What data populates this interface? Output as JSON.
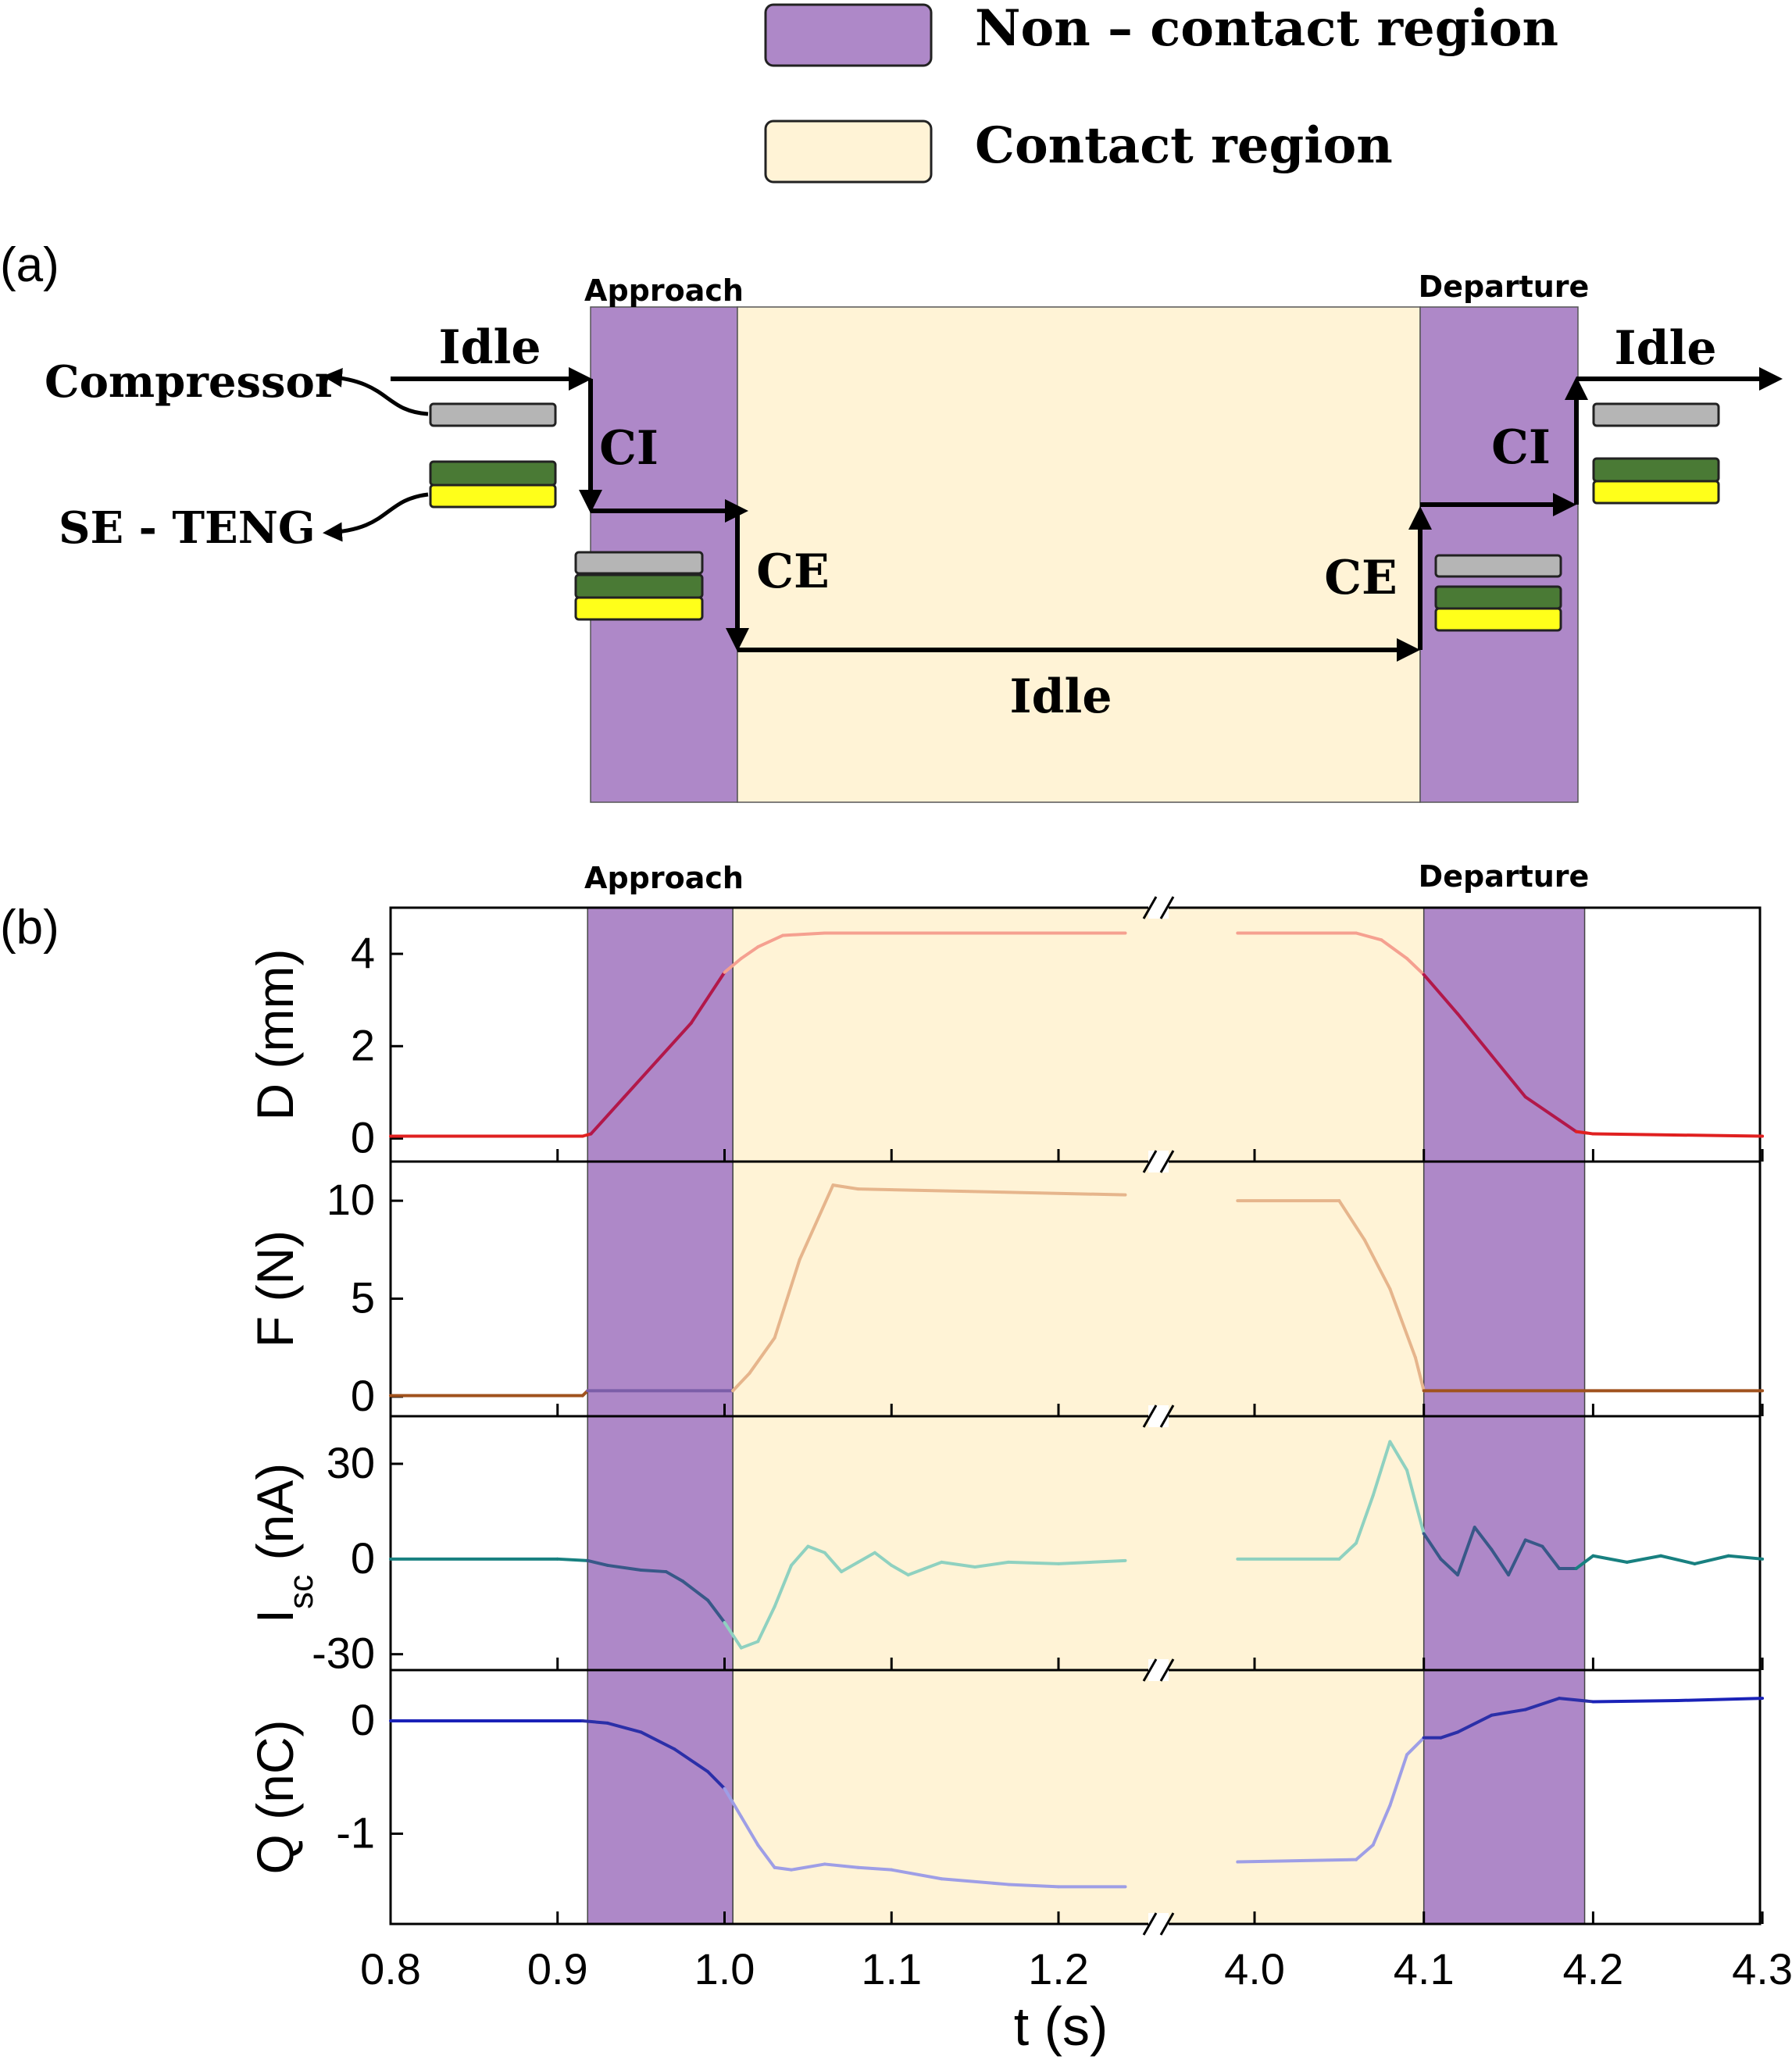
{
  "legend": [
    {
      "label": "Non – contact region",
      "color": "#ae88c8"
    },
    {
      "label": "Contact region",
      "color": "#fff3d6"
    }
  ],
  "panel_a": {
    "tag": "(a)",
    "approach_label": "Approach",
    "departure_label": "Departure",
    "compressor_label": "Compressor",
    "teng_label": "SE - TENG",
    "idle_1": "Idle",
    "idle_2": "Idle",
    "idle_3": "Idle",
    "ci_1": "CI",
    "ci_2": "CI",
    "ce_1": "CE",
    "ce_2": "CE"
  },
  "panel_b": {
    "tag": "(b)",
    "approach_label": "Approach",
    "departure_label": "Departure",
    "x_label": "t (s)"
  },
  "colors": {
    "noncontact": "#ae88c8",
    "contact": "#fff3d6",
    "compressor_gray": "#b5b5b5",
    "teng_green": "#4a7a35",
    "teng_yellow": "#ffff1a"
  },
  "chart_data": {
    "type": "line",
    "x_label": "t (s)",
    "x_ticks": [
      "0.8",
      "0.9",
      "1.0",
      "1.1",
      "1.2",
      "4.0",
      "4.1",
      "4.2",
      "4.3"
    ],
    "x_segments": [
      {
        "range": [
          0.8,
          1.24
        ]
      },
      {
        "range": [
          3.99,
          4.3
        ]
      }
    ],
    "x_break_between": [
      1.24,
      3.99
    ],
    "regions": [
      {
        "name": "Approach",
        "type": "non-contact",
        "x": [
          0.918,
          1.005
        ]
      },
      {
        "name": "contact",
        "type": "contact",
        "x": [
          1.005,
          4.1
        ]
      },
      {
        "name": "Departure",
        "type": "non-contact",
        "x": [
          4.1,
          4.195
        ]
      }
    ],
    "panels": [
      {
        "id": "D",
        "ylabel": "D (mm)",
        "ylim": [
          -0.5,
          5.0
        ],
        "yticks": [
          "0",
          "2",
          "4"
        ],
        "ytick_values": [
          0,
          2,
          4
        ],
        "colors": {
          "outside": "#e02020",
          "noncontact": "#b2184a",
          "contact": "#f5a090"
        },
        "points": [
          [
            0.8,
            0.05
          ],
          [
            0.915,
            0.05
          ],
          [
            0.92,
            0.1
          ],
          [
            0.94,
            0.9
          ],
          [
            0.96,
            1.7
          ],
          [
            0.98,
            2.5
          ],
          [
            1.0,
            3.6
          ],
          [
            1.01,
            3.9
          ],
          [
            1.02,
            4.15
          ],
          [
            1.035,
            4.4
          ],
          [
            1.06,
            4.45
          ],
          [
            1.24,
            4.45
          ],
          [
            3.99,
            4.45
          ],
          [
            4.06,
            4.45
          ],
          [
            4.075,
            4.3
          ],
          [
            4.09,
            3.9
          ],
          [
            4.1,
            3.55
          ],
          [
            4.12,
            2.7
          ],
          [
            4.14,
            1.8
          ],
          [
            4.16,
            0.9
          ],
          [
            4.18,
            0.4
          ],
          [
            4.19,
            0.15
          ],
          [
            4.2,
            0.1
          ],
          [
            4.3,
            0.05
          ]
        ]
      },
      {
        "id": "F",
        "ylabel": "F (N)",
        "ylim": [
          -1.0,
          12.0
        ],
        "yticks": [
          "0",
          "5",
          "10"
        ],
        "ytick_values": [
          0,
          5,
          10
        ],
        "colors": {
          "outside": "#a0521e",
          "noncontact": "#7b5ea8",
          "contact": "#e6b58c"
        },
        "points": [
          [
            0.8,
            0.05
          ],
          [
            0.915,
            0.05
          ],
          [
            0.918,
            0.3
          ],
          [
            1.005,
            0.3
          ],
          [
            1.015,
            1.2
          ],
          [
            1.03,
            3.0
          ],
          [
            1.045,
            7.0
          ],
          [
            1.065,
            10.8
          ],
          [
            1.08,
            10.6
          ],
          [
            1.24,
            10.3
          ],
          [
            3.99,
            10.0
          ],
          [
            4.05,
            10.0
          ],
          [
            4.065,
            8.0
          ],
          [
            4.08,
            5.5
          ],
          [
            4.095,
            2.0
          ],
          [
            4.1,
            0.3
          ],
          [
            4.3,
            0.3
          ]
        ]
      },
      {
        "id": "Isc",
        "ylabel": "I_sc (nA)",
        "ylim": [
          -35,
          45
        ],
        "yticks": [
          "-30",
          "0",
          "30"
        ],
        "ytick_values": [
          -30,
          0,
          30
        ],
        "colors": {
          "outside": "#188080",
          "noncontact": "#385888",
          "contact": "#8fd1c0"
        },
        "points": [
          [
            0.8,
            0
          ],
          [
            0.9,
            0
          ],
          [
            0.918,
            -0.5
          ],
          [
            0.93,
            -2.0
          ],
          [
            0.95,
            -3.5
          ],
          [
            0.965,
            -4.0
          ],
          [
            0.975,
            -7.0
          ],
          [
            0.99,
            -13.0
          ],
          [
            1.0,
            -20.0
          ],
          [
            1.01,
            -28.0
          ],
          [
            1.02,
            -26.0
          ],
          [
            1.03,
            -15.0
          ],
          [
            1.04,
            -2.0
          ],
          [
            1.05,
            4.0
          ],
          [
            1.06,
            2.0
          ],
          [
            1.07,
            -4.0
          ],
          [
            1.08,
            -1.0
          ],
          [
            1.09,
            2.0
          ],
          [
            1.1,
            -2.0
          ],
          [
            1.11,
            -5.0
          ],
          [
            1.12,
            -3.0
          ],
          [
            1.13,
            -1.0
          ],
          [
            1.15,
            -2.5
          ],
          [
            1.17,
            -1.0
          ],
          [
            1.2,
            -1.5
          ],
          [
            1.24,
            -0.5
          ],
          [
            3.99,
            0
          ],
          [
            4.05,
            0
          ],
          [
            4.06,
            5.0
          ],
          [
            4.07,
            20.0
          ],
          [
            4.08,
            37.0
          ],
          [
            4.09,
            28.0
          ],
          [
            4.1,
            8.0
          ],
          [
            4.11,
            0
          ],
          [
            4.12,
            -5.0
          ],
          [
            4.13,
            10.0
          ],
          [
            4.14,
            3.0
          ],
          [
            4.15,
            -5.0
          ],
          [
            4.16,
            6.0
          ],
          [
            4.17,
            4.0
          ],
          [
            4.18,
            -3.0
          ],
          [
            4.19,
            -3.0
          ],
          [
            4.2,
            1.0
          ],
          [
            4.22,
            -1.0
          ],
          [
            4.24,
            1.0
          ],
          [
            4.26,
            -1.5
          ],
          [
            4.28,
            1.0
          ],
          [
            4.3,
            0
          ]
        ]
      },
      {
        "id": "Q",
        "ylabel": "Q (nC)",
        "ylim": [
          -1.8,
          0.45
        ],
        "yticks": [
          "0",
          "-1"
        ],
        "ytick_values": [
          0,
          -1
        ],
        "colors": {
          "outside": "#1a22b8",
          "noncontact": "#2b2fa8",
          "contact": "#9e9ee6"
        },
        "points": [
          [
            0.8,
            0.0
          ],
          [
            0.915,
            0.0
          ],
          [
            0.93,
            -0.02
          ],
          [
            0.95,
            -0.1
          ],
          [
            0.97,
            -0.25
          ],
          [
            0.99,
            -0.45
          ],
          [
            1.0,
            -0.6
          ],
          [
            1.01,
            -0.85
          ],
          [
            1.02,
            -1.1
          ],
          [
            1.03,
            -1.3
          ],
          [
            1.04,
            -1.32
          ],
          [
            1.06,
            -1.27
          ],
          [
            1.08,
            -1.3
          ],
          [
            1.1,
            -1.32
          ],
          [
            1.13,
            -1.4
          ],
          [
            1.17,
            -1.45
          ],
          [
            1.2,
            -1.47
          ],
          [
            1.24,
            -1.47
          ],
          [
            3.99,
            -1.25
          ],
          [
            4.06,
            -1.23
          ],
          [
            4.07,
            -1.1
          ],
          [
            4.08,
            -0.75
          ],
          [
            4.09,
            -0.3
          ],
          [
            4.1,
            -0.15
          ],
          [
            4.11,
            -0.15
          ],
          [
            4.12,
            -0.1
          ],
          [
            4.14,
            0.05
          ],
          [
            4.16,
            0.1
          ],
          [
            4.18,
            0.2
          ],
          [
            4.2,
            0.17
          ],
          [
            4.25,
            0.18
          ],
          [
            4.3,
            0.2
          ]
        ]
      }
    ]
  }
}
